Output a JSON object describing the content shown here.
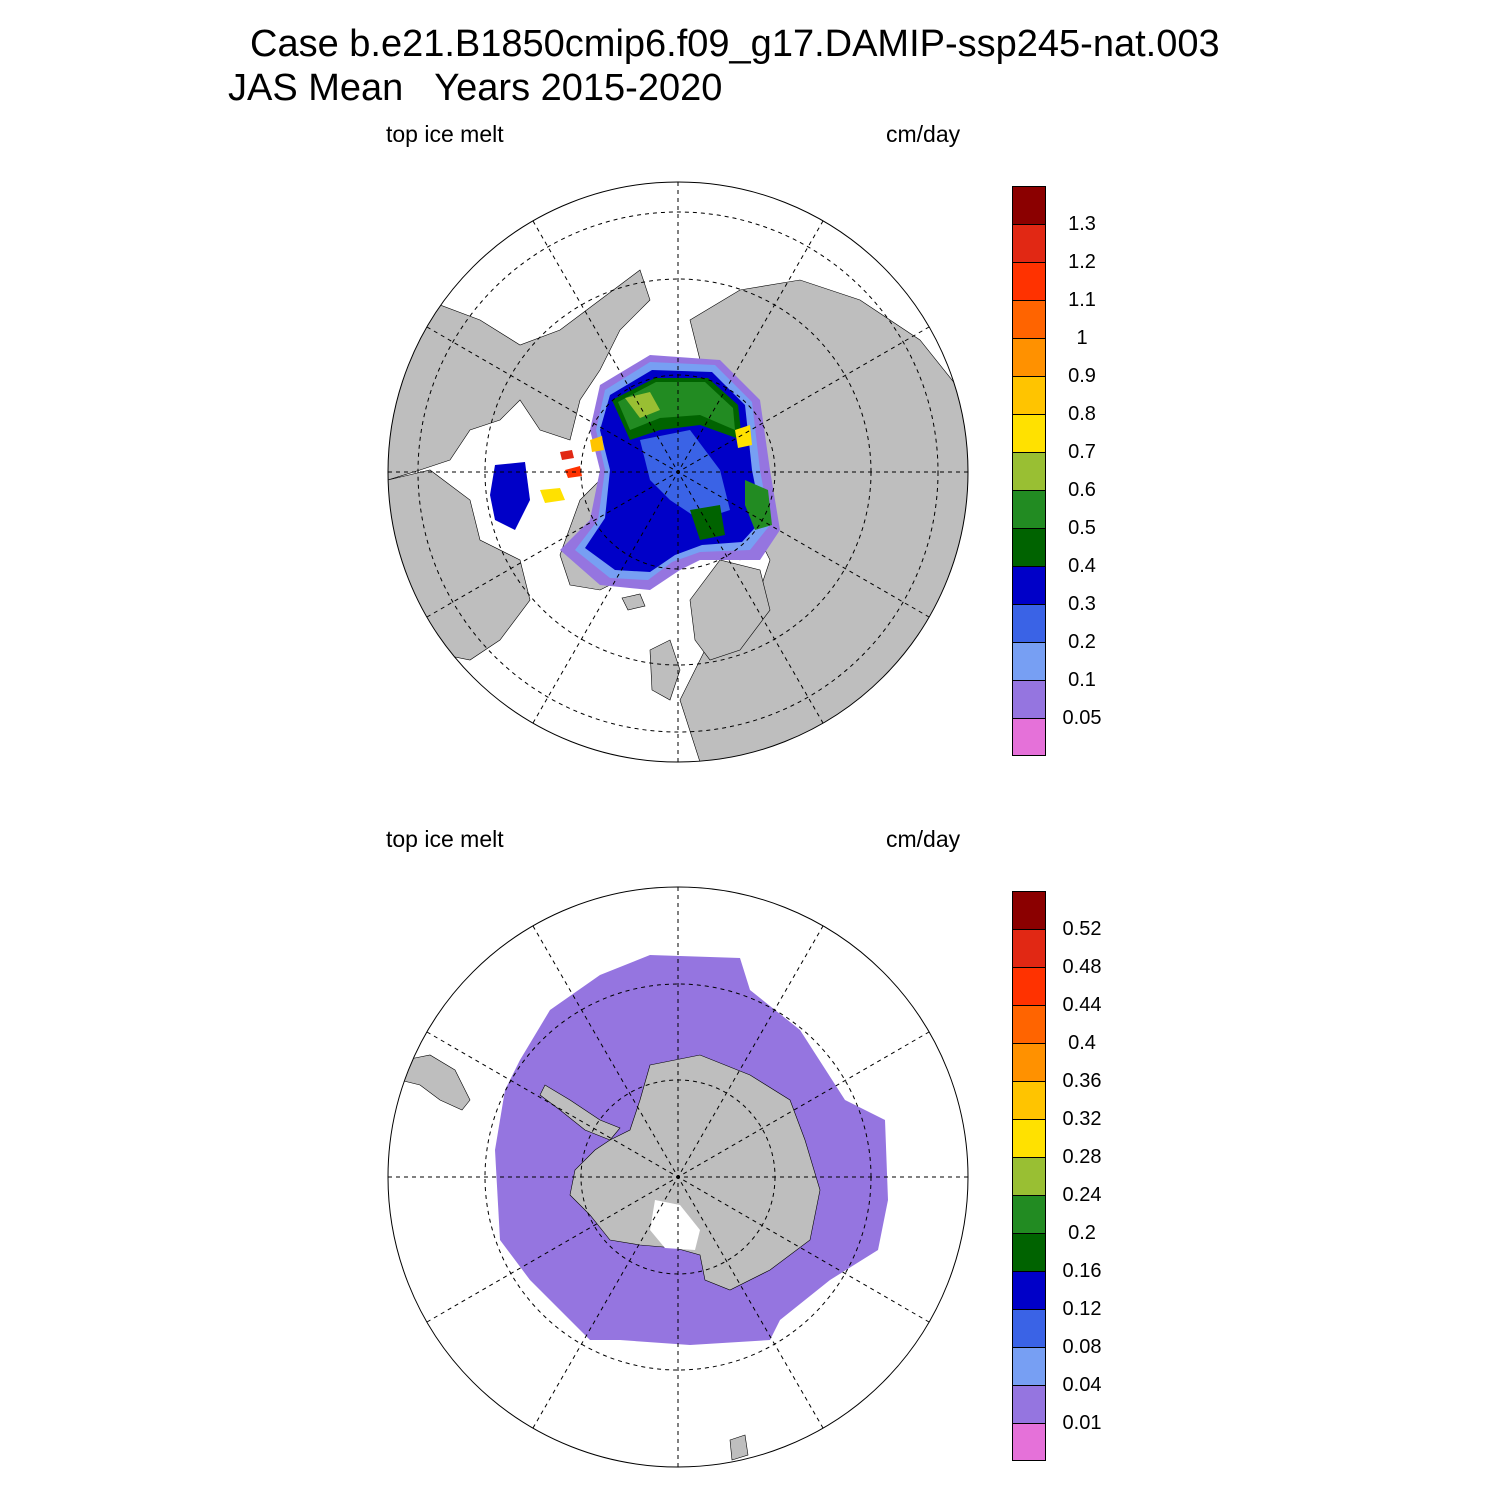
{
  "title": {
    "line1": "Case b.e21.B1850cmip6.f09_g17.DAMIP-ssp245-nat.003",
    "line2": "JAS Mean   Years 2015-2020"
  },
  "colors": {
    "land": "#bebebe",
    "ocean": "#ffffff",
    "palette": [
      "#e571d9",
      "#9575e0",
      "#779ff3",
      "#3a63e6",
      "#0000c8",
      "#006300",
      "#228b22",
      "#99bf33",
      "#ffe100",
      "#ffc400",
      "#ff9100",
      "#ff6400",
      "#ff3200",
      "#e12814",
      "#8b0000"
    ]
  },
  "panels": [
    {
      "name": "arctic",
      "variable": "top ice melt",
      "units": "cm/day",
      "hemisphere": "north",
      "colorbar_labels": [
        "1.3",
        "1.2",
        "1.1",
        "1",
        "0.9",
        "0.8",
        "0.7",
        "0.6",
        "0.5",
        "0.4",
        "0.3",
        "0.2",
        "0.1",
        "0.05"
      ]
    },
    {
      "name": "antarctic",
      "variable": "top ice melt",
      "units": "cm/day",
      "hemisphere": "south",
      "colorbar_labels": [
        "0.52",
        "0.48",
        "0.44",
        "0.4",
        "0.36",
        "0.32",
        "0.28",
        "0.24",
        "0.2",
        "0.16",
        "0.12",
        "0.08",
        "0.04",
        "0.01"
      ]
    }
  ]
}
